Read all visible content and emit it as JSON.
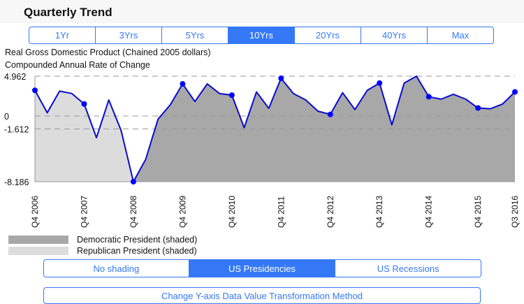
{
  "header": {
    "title": "Quarterly Trend"
  },
  "range_tabs": [
    {
      "label": "1Yr"
    },
    {
      "label": "3Yrs"
    },
    {
      "label": "5Yrs"
    },
    {
      "label": "10Yrs",
      "selected": true
    },
    {
      "label": "20Yrs"
    },
    {
      "label": "40Yrs"
    },
    {
      "label": "Max"
    }
  ],
  "subtitle1": "Real Gross Domestic Product (Chained 2005 dollars)",
  "subtitle2": "Compounded Annual Rate of Change",
  "chart_data": {
    "type": "area",
    "title": "Real Gross Domestic Product (Chained 2005 dollars)",
    "ylabel": "Compounded Annual Rate of Change",
    "ylim": [
      -8.186,
      4.962
    ],
    "yticks": [
      "4.962",
      "0",
      "-1.612",
      "-8.186"
    ],
    "ytick_values": [
      4.962,
      0,
      -1.612,
      -8.186
    ],
    "xtick_labels": [
      "Q4 2006",
      "Q4 2007",
      "Q4 2008",
      "Q4 2009",
      "Q4 2010",
      "Q4 2011",
      "Q4 2012",
      "Q4 2013",
      "Q4 2014",
      "Q4 2015",
      "Q3 2016"
    ],
    "xtick_indices": [
      0,
      4,
      8,
      12,
      16,
      20,
      24,
      28,
      32,
      36,
      39
    ],
    "values": [
      3.2,
      0.4,
      3.1,
      2.8,
      1.5,
      -2.7,
      2.0,
      -1.8,
      -8.186,
      -5.4,
      -0.4,
      1.4,
      4.0,
      1.8,
      4.0,
      2.8,
      2.6,
      -1.45,
      3.0,
      0.96,
      4.7,
      2.8,
      2.0,
      0.6,
      0.2,
      2.9,
      0.8,
      3.2,
      4.1,
      -1.1,
      4.1,
      4.962,
      2.4,
      2.1,
      2.7,
      2.1,
      1.0,
      0.9,
      1.5,
      3.0
    ],
    "shading": [
      {
        "name": "Republican President (shaded)",
        "from": 0,
        "to": 8,
        "color": "#dcdcdc"
      },
      {
        "name": "Democratic President (shaded)",
        "from": 8,
        "to": 39,
        "color": "#a8a8a8"
      }
    ],
    "line_color": "#0a0ad0",
    "marker_color": "#0000ff",
    "grid": "dashed horizontal at ticks"
  },
  "legend": [
    {
      "label": "Democratic President (shaded)",
      "color": "#a8a8a8"
    },
    {
      "label": "Republican President (shaded)",
      "color": "#dcdcdc"
    }
  ],
  "shading_tabs": [
    {
      "label": "No shading"
    },
    {
      "label": "US Presidencies",
      "selected": true
    },
    {
      "label": "US Recessions"
    }
  ],
  "bottom_button": "Change Y-axis Data Value Transformation Method"
}
